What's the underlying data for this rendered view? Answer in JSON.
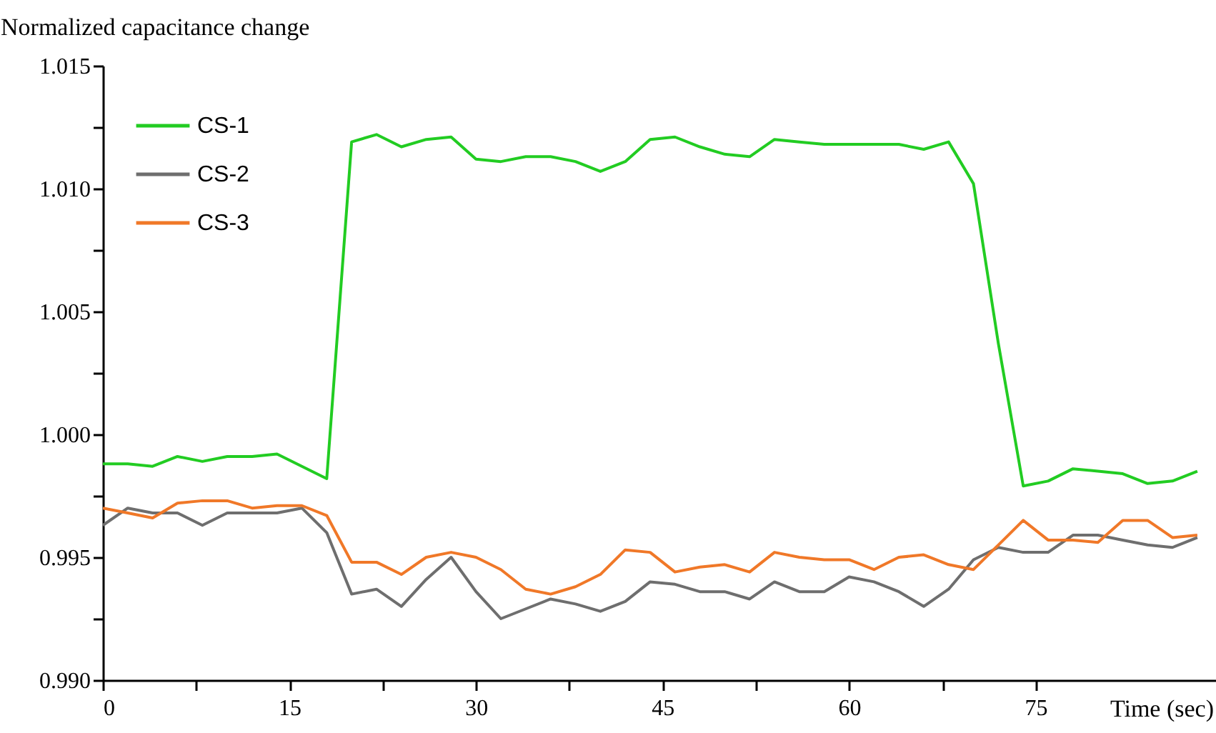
{
  "chart_data": {
    "type": "line",
    "ylabel": "Normalized capacitance change",
    "xlabel": "Time (sec)",
    "x": [
      0,
      2,
      4,
      6,
      8,
      10,
      12,
      14,
      16,
      18,
      20,
      22,
      24,
      26,
      28,
      30,
      32,
      34,
      36,
      38,
      40,
      42,
      44,
      46,
      48,
      50,
      52,
      54,
      56,
      58,
      60,
      62,
      64,
      66,
      68,
      70,
      72,
      74,
      76,
      78,
      80,
      82,
      84,
      86,
      88
    ],
    "series": [
      {
        "name": "CS-1",
        "color": "#22cc22",
        "values": [
          0.9988,
          0.9988,
          0.9987,
          0.9991,
          0.9989,
          0.9991,
          0.9991,
          0.9992,
          0.9987,
          0.9982,
          1.0119,
          1.0122,
          1.0117,
          1.012,
          1.0121,
          1.0112,
          1.0111,
          1.0113,
          1.0113,
          1.0111,
          1.0107,
          1.0111,
          1.012,
          1.0121,
          1.0117,
          1.0114,
          1.0113,
          1.012,
          1.0119,
          1.0118,
          1.0118,
          1.0118,
          1.0118,
          1.0116,
          1.0119,
          1.0102,
          1.0037,
          0.9979,
          0.9981,
          0.9986,
          0.9985,
          0.9984,
          0.998,
          0.9981,
          0.9985
        ]
      },
      {
        "name": "CS-2",
        "color": "#6e6e6e",
        "values": [
          0.9963,
          0.997,
          0.9968,
          0.9968,
          0.9963,
          0.9968,
          0.9968,
          0.9968,
          0.997,
          0.996,
          0.9935,
          0.9937,
          0.993,
          0.9941,
          0.995,
          0.9936,
          0.9925,
          0.9929,
          0.9933,
          0.9931,
          0.9928,
          0.9932,
          0.994,
          0.9939,
          0.9936,
          0.9936,
          0.9933,
          0.994,
          0.9936,
          0.9936,
          0.9942,
          0.994,
          0.9936,
          0.993,
          0.9937,
          0.9949,
          0.9954,
          0.9952,
          0.9952,
          0.9959,
          0.9959,
          0.9957,
          0.9955,
          0.9954,
          0.9958
        ]
      },
      {
        "name": "CS-3",
        "color": "#f07828",
        "values": [
          0.997,
          0.9968,
          0.9966,
          0.9972,
          0.9973,
          0.9973,
          0.997,
          0.9971,
          0.9971,
          0.9967,
          0.9948,
          0.9948,
          0.9943,
          0.995,
          0.9952,
          0.995,
          0.9945,
          0.9937,
          0.9935,
          0.9938,
          0.9943,
          0.9953,
          0.9952,
          0.9944,
          0.9946,
          0.9947,
          0.9944,
          0.9952,
          0.995,
          0.9949,
          0.9949,
          0.9945,
          0.995,
          0.9951,
          0.9947,
          0.9945,
          0.9955,
          0.9965,
          0.9957,
          0.9957,
          0.9956,
          0.9965,
          0.9965,
          0.9958,
          0.9959
        ]
      }
    ],
    "xlim": [
      0,
      89.5
    ],
    "xticks": [
      0,
      {
        "value": 7.5,
        "label": null
      },
      15,
      {
        "value": 22.5,
        "label": null
      },
      30,
      {
        "value": 37.5,
        "label": null
      },
      45,
      {
        "value": 52.5,
        "label": null
      },
      60,
      {
        "value": 67.5,
        "label": null
      },
      75
    ],
    "ylim": [
      0.99,
      1.015
    ],
    "yticks": [
      {
        "value": 0.99,
        "label": "0.990"
      },
      {
        "value": 0.9925,
        "label": null
      },
      {
        "value": 0.995,
        "label": "0.995"
      },
      {
        "value": 0.9975,
        "label": null
      },
      {
        "value": 1.0,
        "label": "1.000"
      },
      {
        "value": 1.0025,
        "label": null
      },
      {
        "value": 1.005,
        "label": "1.005"
      },
      {
        "value": 1.0075,
        "label": null
      },
      {
        "value": 1.01,
        "label": "1.010"
      },
      {
        "value": 1.0125,
        "label": null
      },
      {
        "value": 1.015,
        "label": "1.015"
      }
    ],
    "grid": false,
    "legend": "top left",
    "marker": "none",
    "line_style": "solid"
  }
}
